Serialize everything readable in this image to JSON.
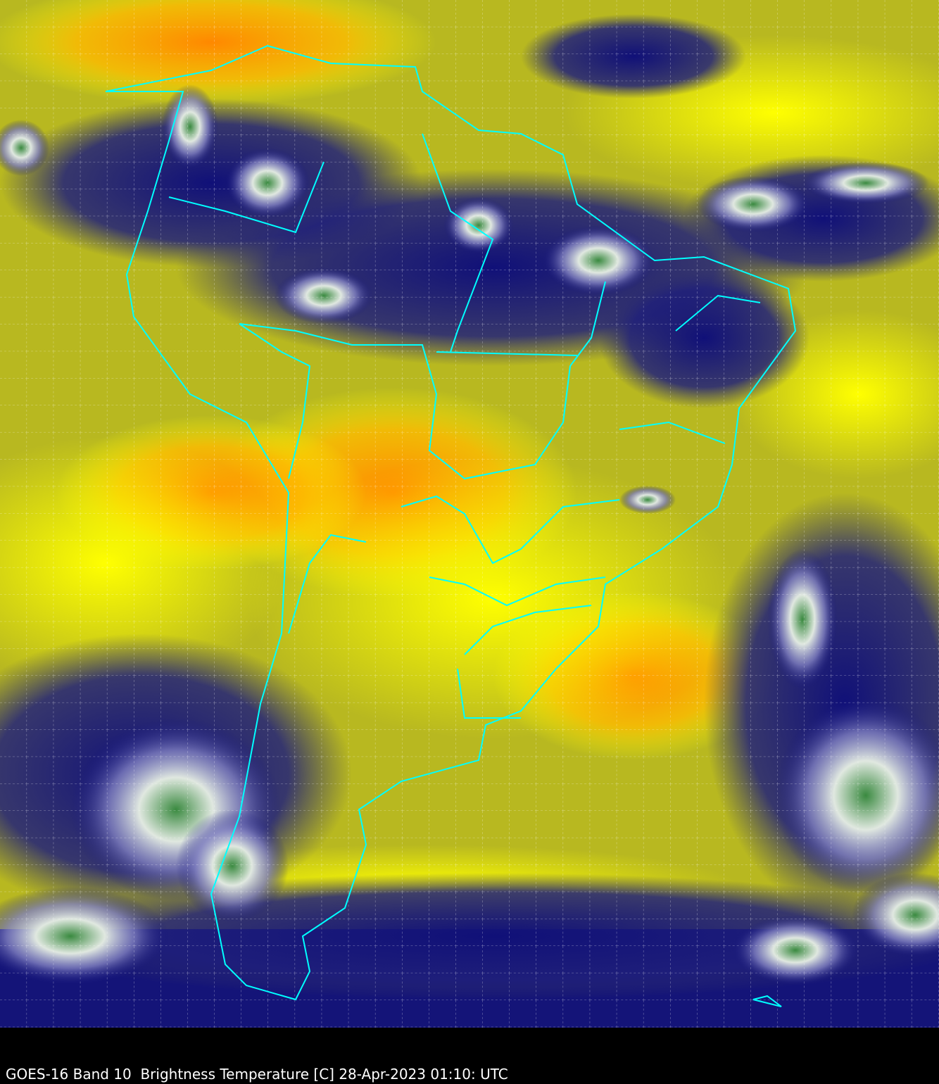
{
  "caption": "GOES-16 Band 10  Brightness Temperature [C] 28-Apr-2023 01:10: UTC",
  "colors": {
    "warm": "#ff9900",
    "mid": "#ffff00",
    "dry": "#9a9a10",
    "moist": "#10107a",
    "cold": "#ffffff",
    "coldest": "#3a8a40",
    "borders": "#00ffff",
    "grid": "#ffffff"
  }
}
